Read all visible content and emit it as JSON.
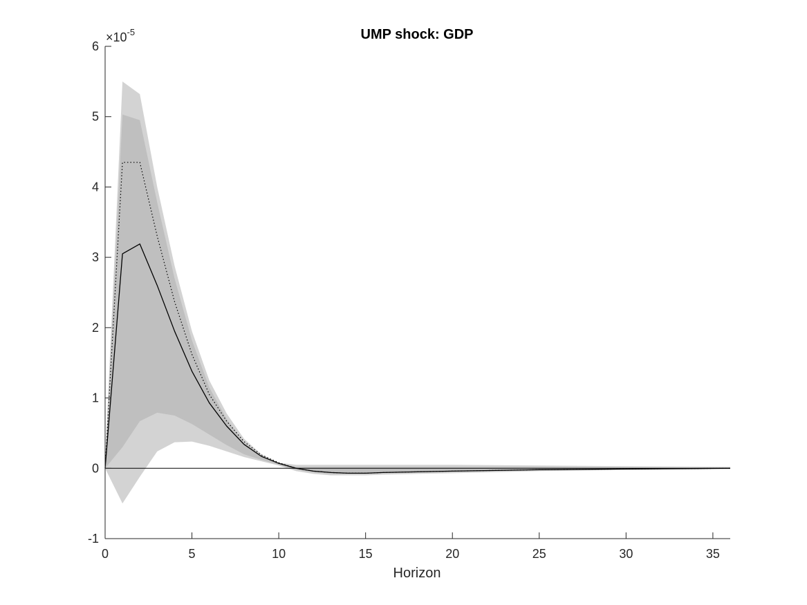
{
  "chart_data": {
    "type": "line",
    "title": "UMP shock: GDP",
    "xlabel": "Horizon",
    "ylabel": "",
    "y_multiplier_label": "×10",
    "y_multiplier_exponent": "-5",
    "xlim": [
      0,
      36
    ],
    "ylim": [
      -1,
      6
    ],
    "x_ticks": [
      0,
      5,
      10,
      15,
      20,
      25,
      30,
      35
    ],
    "y_ticks": [
      -1,
      0,
      1,
      2,
      3,
      4,
      5,
      6
    ],
    "grid": false,
    "x": [
      0,
      1,
      2,
      3,
      4,
      5,
      6,
      7,
      8,
      9,
      10,
      11,
      12,
      13,
      14,
      15,
      16,
      18,
      20,
      25,
      30,
      36
    ],
    "bands": [
      {
        "fill": "#d3d3d3",
        "upper": [
          0.1,
          5.5,
          5.32,
          4.0,
          2.88,
          1.95,
          1.25,
          0.78,
          0.42,
          0.2,
          0.08,
          0.05,
          0.05,
          0.05,
          0.05,
          0.05,
          0.05,
          0.05,
          0.05,
          0.04,
          0.03,
          0.02
        ],
        "lower": [
          0.0,
          -0.5,
          -0.12,
          0.24,
          0.37,
          0.38,
          0.32,
          0.24,
          0.16,
          0.1,
          0.04,
          -0.04,
          -0.08,
          -0.1,
          -0.1,
          -0.1,
          -0.09,
          -0.08,
          -0.07,
          -0.04,
          -0.02,
          -0.01
        ]
      },
      {
        "fill": "#bfbfbf",
        "upper": [
          0.05,
          5.03,
          4.95,
          3.78,
          2.7,
          1.82,
          1.15,
          0.7,
          0.37,
          0.18,
          0.07,
          0.02,
          0.02,
          0.02,
          0.02,
          0.02,
          0.02,
          0.02,
          0.02,
          0.02,
          0.01,
          0.01
        ],
        "lower": [
          0.0,
          0.3,
          0.67,
          0.79,
          0.75,
          0.63,
          0.48,
          0.33,
          0.2,
          0.12,
          0.05,
          -0.02,
          -0.06,
          -0.08,
          -0.08,
          -0.08,
          -0.07,
          -0.06,
          -0.05,
          -0.03,
          -0.02,
          -0.01
        ]
      }
    ],
    "series": [
      {
        "style": "solid",
        "color": "#000000",
        "values": [
          0.0,
          3.05,
          3.19,
          2.6,
          1.95,
          1.38,
          0.93,
          0.6,
          0.34,
          0.17,
          0.07,
          0.0,
          -0.04,
          -0.06,
          -0.07,
          -0.07,
          -0.06,
          -0.05,
          -0.04,
          -0.02,
          -0.01,
          0.0
        ]
      },
      {
        "style": "dotted",
        "color": "#000000",
        "values": [
          0.0,
          4.35,
          4.35,
          3.3,
          2.37,
          1.62,
          1.05,
          0.67,
          0.38,
          0.19,
          0.08,
          0.0,
          -0.04,
          -0.06,
          -0.07,
          -0.07,
          -0.06,
          -0.05,
          -0.04,
          -0.02,
          -0.01,
          0.0
        ]
      }
    ],
    "zero_line": true
  }
}
